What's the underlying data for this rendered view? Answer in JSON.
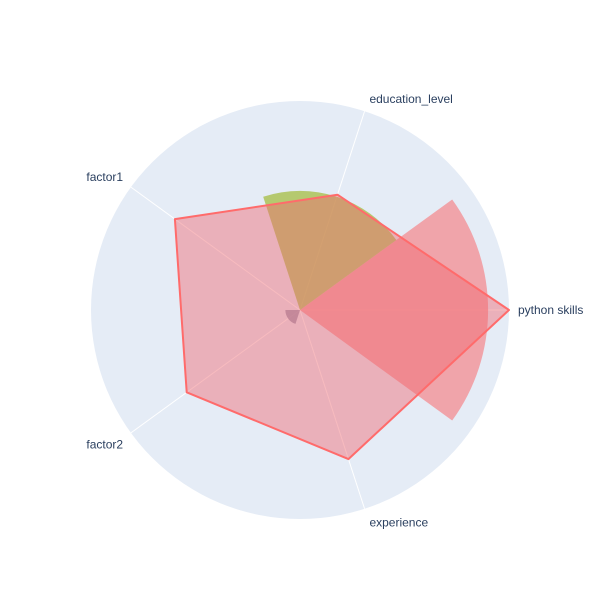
{
  "chart_data": {
    "type": "radar",
    "axes": [
      "python skills",
      "education_level",
      "factor1",
      "factor2",
      "experience"
    ],
    "range": [
      0,
      1
    ],
    "grid": true,
    "background": "#e5ecf6",
    "series": [
      {
        "kind": "polygon",
        "values": [
          1.0,
          0.58,
          0.74,
          0.67,
          0.75
        ],
        "fill": "#f06970",
        "fill_opacity": 0.45,
        "stroke": "#ff6b6b"
      }
    ],
    "bar_series": [
      {
        "kind": "sector",
        "center_angle_deg": 0,
        "width_deg": 72,
        "value": 0.9,
        "fill": "#f4888c",
        "opacity": 0.72
      },
      {
        "kind": "sector",
        "center_angle_deg": 72,
        "width_deg": 72,
        "value": 0.57,
        "fill": "#a2bb3a",
        "opacity": 0.72
      },
      {
        "kind": "sector",
        "center_angle_deg": 216,
        "width_deg": 72,
        "value": 0.07,
        "fill": "#8a89a8",
        "opacity": 0.75
      }
    ]
  }
}
